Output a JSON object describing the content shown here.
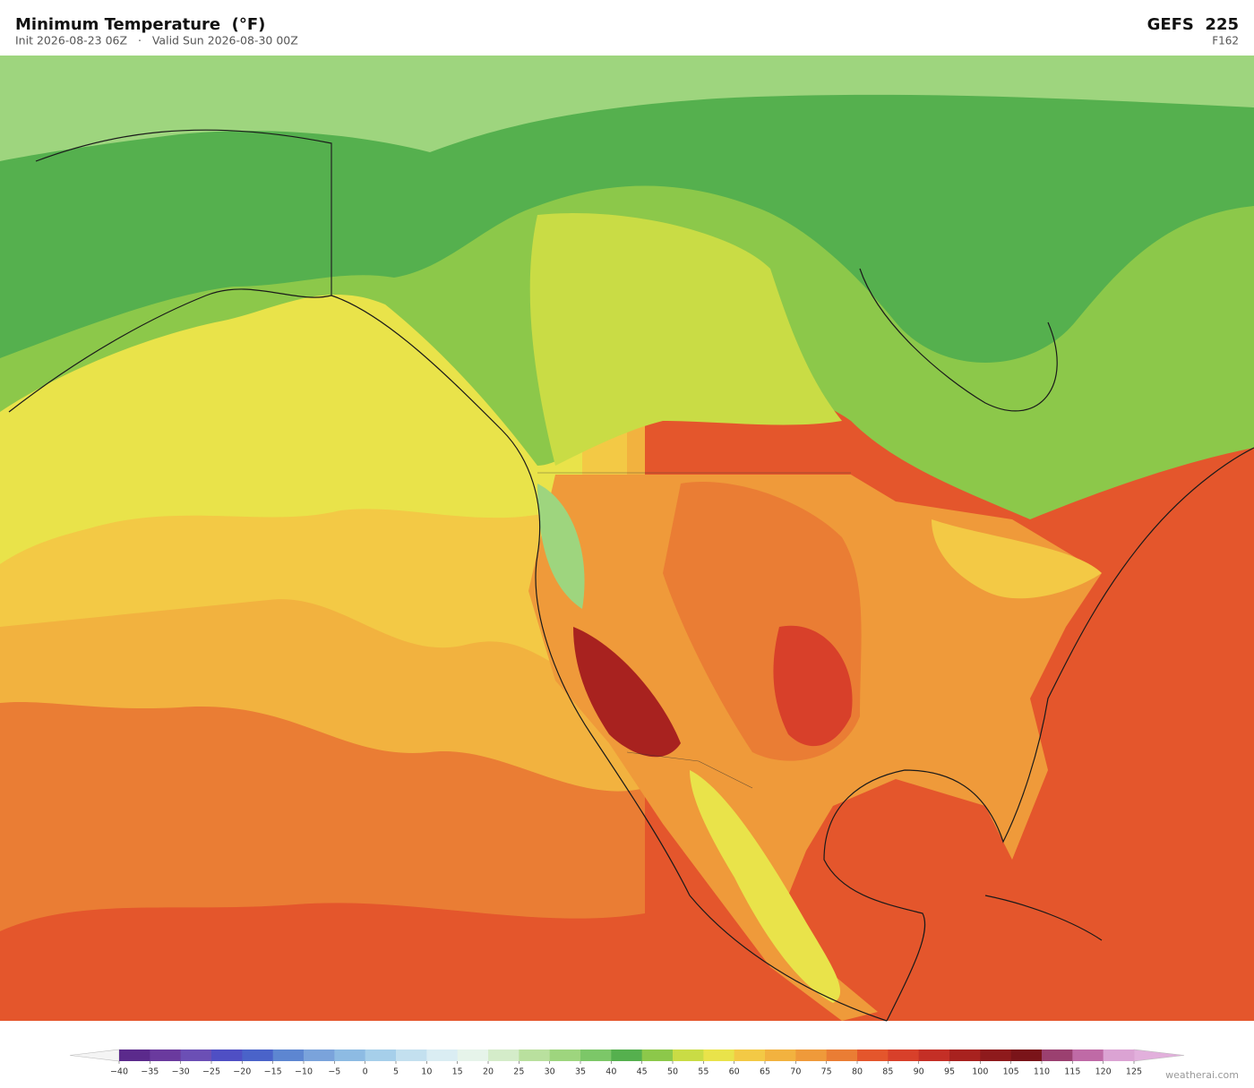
{
  "header": {
    "title": "Minimum Temperature  (°F)",
    "subtitle": "Init 2026-08-23 06Z   ·   Valid Sun 2026-08-30 00Z",
    "model": "GEFS  225",
    "forecast_hour": "F162"
  },
  "colorbar": {
    "ticks": [
      {
        "value": -40,
        "label": "−40"
      },
      {
        "value": -35,
        "label": "−35"
      },
      {
        "value": -30,
        "label": "−30"
      },
      {
        "value": -25,
        "label": "−25"
      },
      {
        "value": -20,
        "label": "−20"
      },
      {
        "value": -15,
        "label": "−15"
      },
      {
        "value": -10,
        "label": "−10"
      },
      {
        "value": -5,
        "label": "−5"
      },
      0,
      5,
      10,
      15,
      20,
      25,
      30,
      35,
      40,
      45,
      50,
      55,
      60,
      65,
      70,
      75,
      80,
      85,
      90,
      95,
      100,
      105,
      110,
      115,
      120,
      125
    ],
    "colors": [
      "#5b2a8c",
      "#6a3a9e",
      "#6b4fb5",
      "#4f4fc4",
      "#4a63c9",
      "#5d86d1",
      "#7aa3db",
      "#8dbbe3",
      "#a6cfea",
      "#c3e0ef",
      "#daedf3",
      "#e6f4ea",
      "#d4ecc9",
      "#b9e09e",
      "#9ed57e",
      "#7cc768",
      "#55b04e",
      "#8cc84a",
      "#c9dc45",
      "#e9e34a",
      "#f3c945",
      "#f2b23f",
      "#ef9a3a",
      "#ea7d34",
      "#e4562c",
      "#d8402a",
      "#c42f26",
      "#a8221f",
      "#8e1a1c",
      "#7a1419",
      "#9b4070",
      "#bf6aa6",
      "#dba3d3"
    ],
    "under_color": "#f4f4f4",
    "over_color": "#e2b0dc"
  },
  "watermark": "weatherai.com"
}
